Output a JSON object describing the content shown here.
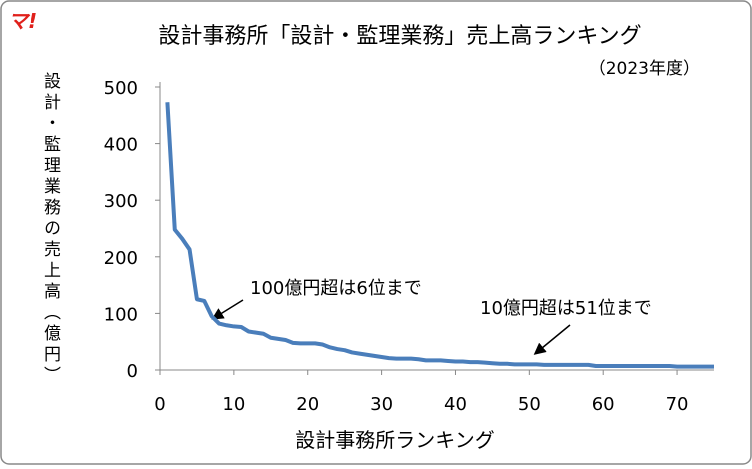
{
  "logo": "マ!",
  "chart_data": {
    "type": "line",
    "title": "設計事務所「設計・監理業務」売上高ランキング",
    "subtitle": "（2023年度）",
    "y_label": "設計・監理業務の売上高（億円）",
    "x_label": "設計事務所ランキング",
    "annotations": [
      "100億円超は6位まで",
      "10億円超は51位まで"
    ],
    "x": [
      1,
      2,
      3,
      4,
      5,
      6,
      7,
      8,
      9,
      10,
      11,
      12,
      13,
      14,
      15,
      16,
      17,
      18,
      19,
      20,
      21,
      22,
      23,
      24,
      25,
      26,
      27,
      28,
      29,
      30,
      31,
      32,
      33,
      34,
      35,
      36,
      37,
      38,
      39,
      40,
      41,
      42,
      43,
      44,
      45,
      46,
      47,
      48,
      49,
      50,
      51,
      52,
      53,
      54,
      55,
      56,
      57,
      58,
      59,
      60,
      61,
      62,
      63,
      64,
      65,
      66,
      67,
      68,
      69,
      70,
      71,
      72,
      73,
      74,
      75
    ],
    "series": [
      {
        "color": "#4a7ebb",
        "values": [
          473,
          248,
          232,
          213,
          125,
          122,
          95,
          82,
          79,
          77,
          76,
          68,
          66,
          64,
          57,
          55,
          53,
          48,
          47,
          47,
          47,
          45,
          40,
          37,
          35,
          31,
          29,
          27,
          25,
          23,
          21,
          20,
          20,
          20,
          19,
          17,
          17,
          17,
          16,
          15,
          15,
          14,
          14,
          13,
          12,
          11,
          11,
          10,
          10,
          10,
          10,
          9,
          9,
          9,
          9,
          9,
          9,
          9,
          7,
          7,
          7,
          7,
          7,
          7,
          7,
          7,
          7,
          7,
          7,
          6,
          6,
          6,
          6,
          6,
          6
        ]
      }
    ],
    "xlim": [
      0,
      75
    ],
    "xticks": [
      0,
      10,
      20,
      30,
      40,
      50,
      60,
      70
    ],
    "ylim": [
      0,
      500
    ],
    "yticks": [
      0,
      100,
      200,
      300,
      400,
      500
    ]
  }
}
